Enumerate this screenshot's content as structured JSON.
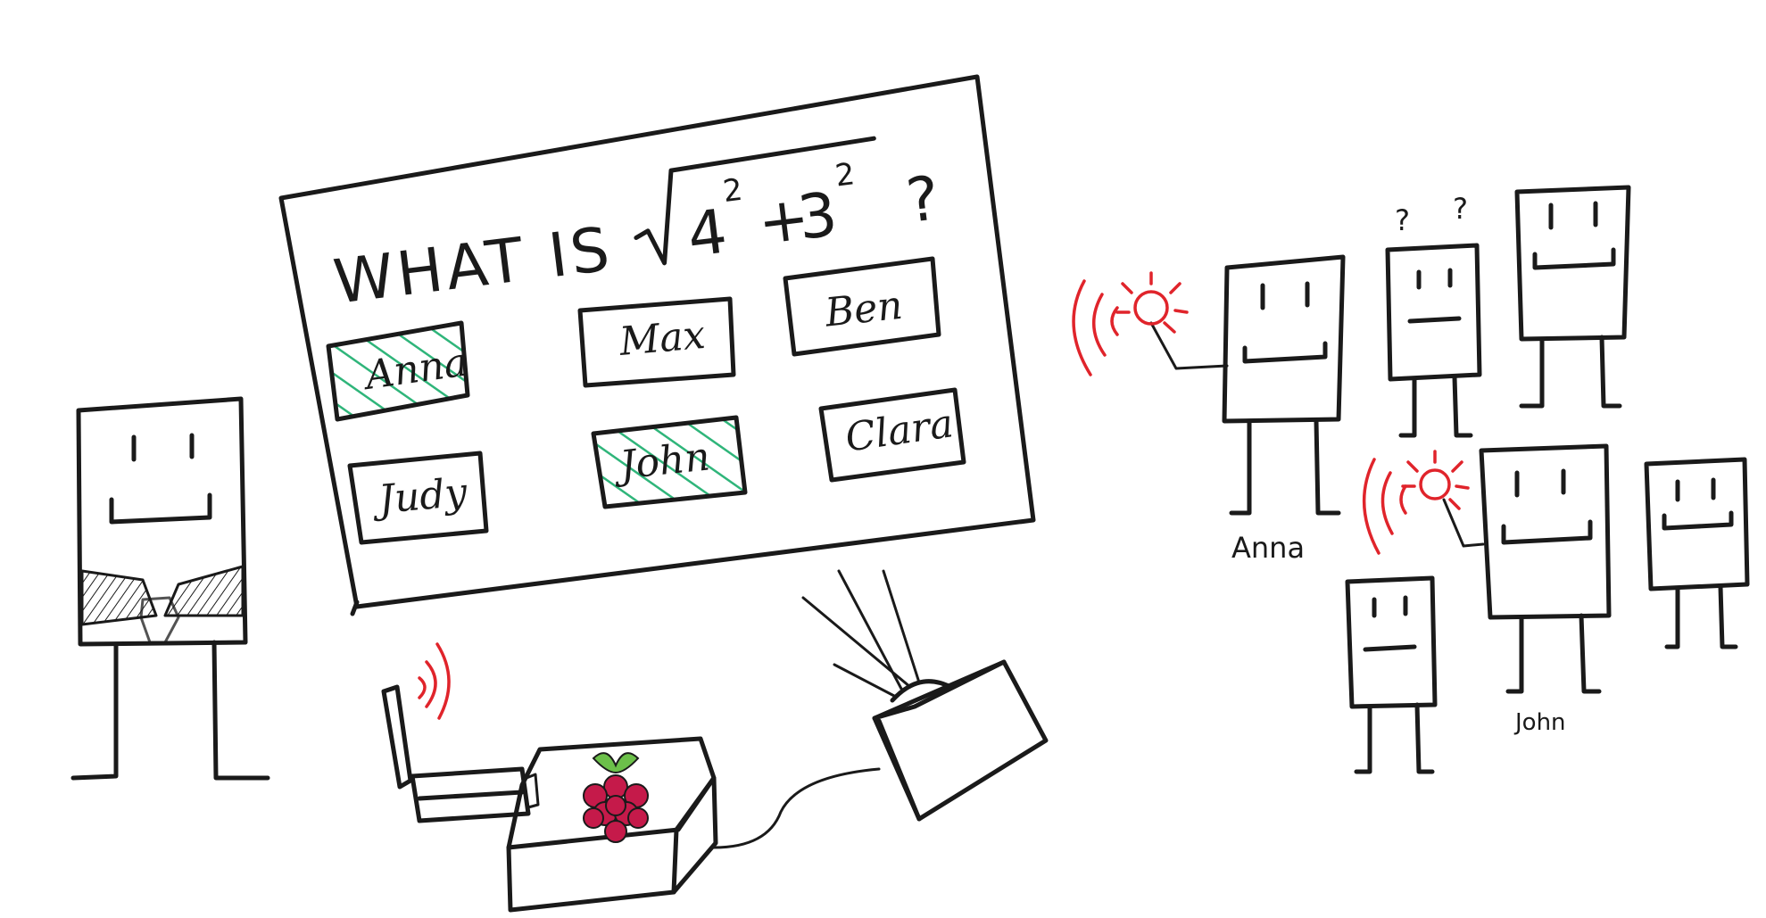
{
  "screen": {
    "question": {
      "prefix": "WHAT IS",
      "base_a": "4",
      "exp_a": "2",
      "plus": "+",
      "base_b": "3",
      "exp_b": "2",
      "qmark": "?"
    },
    "answers": [
      {
        "label": "Anna",
        "highlighted": true
      },
      {
        "label": "Max",
        "highlighted": false
      },
      {
        "label": "Ben",
        "highlighted": false
      },
      {
        "label": "Judy",
        "highlighted": false
      },
      {
        "label": "John",
        "highlighted": true
      },
      {
        "label": "Clara",
        "highlighted": false
      }
    ]
  },
  "people": {
    "anna_label": "Anna",
    "john_label": "John",
    "confused_marks": [
      "?",
      "?"
    ]
  },
  "colors": {
    "ink": "#1a1a1a",
    "buzz_signal": "#e0242b",
    "highlight_hatch": "#2fb57a",
    "raspberry": "#c51a4a",
    "leaf": "#6cc04a"
  },
  "icons": {
    "board_logo": "raspberry-pi-icon"
  }
}
